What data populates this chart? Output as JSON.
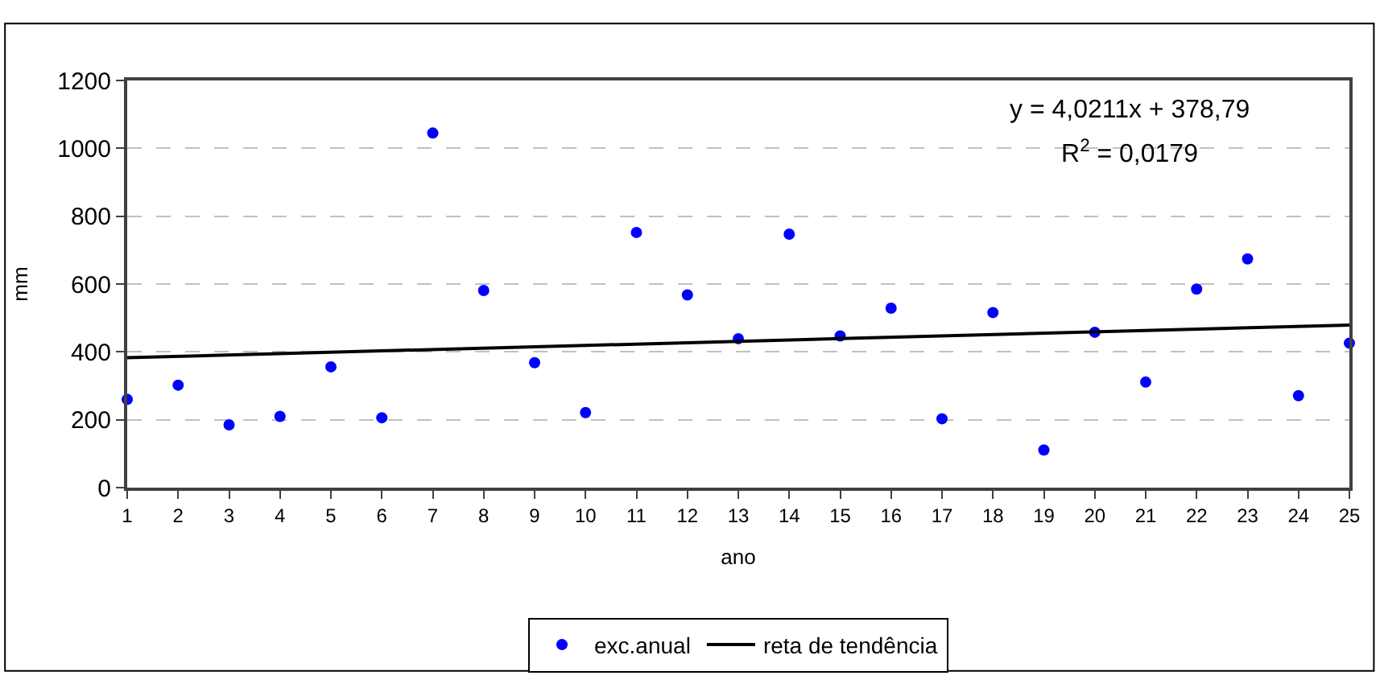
{
  "chart_data": {
    "type": "scatter",
    "xlabel": "ano",
    "ylabel": "mm",
    "xlim": [
      1,
      25
    ],
    "xticks": [
      1,
      2,
      3,
      4,
      5,
      6,
      7,
      8,
      9,
      10,
      11,
      12,
      13,
      14,
      15,
      16,
      17,
      18,
      19,
      20,
      21,
      22,
      23,
      24,
      25
    ],
    "ylim": [
      0,
      1200
    ],
    "yticks": [
      0,
      200,
      400,
      600,
      800,
      1000,
      1200
    ],
    "grid": "y",
    "legend": "bottom",
    "marker": "circle",
    "annotations": [
      "y = 4,0211x + 378,79",
      "R$^{2}$ = 0,0179"
    ],
    "series": [
      {
        "name": "exc.anual",
        "color": "#0000ff",
        "x": [
          1,
          2,
          3,
          4,
          5,
          6,
          7,
          8,
          9,
          10,
          11,
          12,
          13,
          14,
          15,
          16,
          17,
          18,
          19,
          20,
          21,
          22,
          23,
          24,
          25
        ],
        "values": [
          260,
          302,
          185,
          210,
          356,
          206,
          1045,
          581,
          368,
          221,
          752,
          568,
          439,
          747,
          447,
          529,
          203,
          516,
          111,
          458,
          311,
          585,
          674,
          271,
          426
        ]
      },
      {
        "name": "reta de tendência",
        "color": "#000000",
        "type": "line",
        "marker": "none",
        "line_style": "solid",
        "x": [
          1,
          25
        ],
        "values": [
          383,
          479
        ]
      }
    ]
  }
}
